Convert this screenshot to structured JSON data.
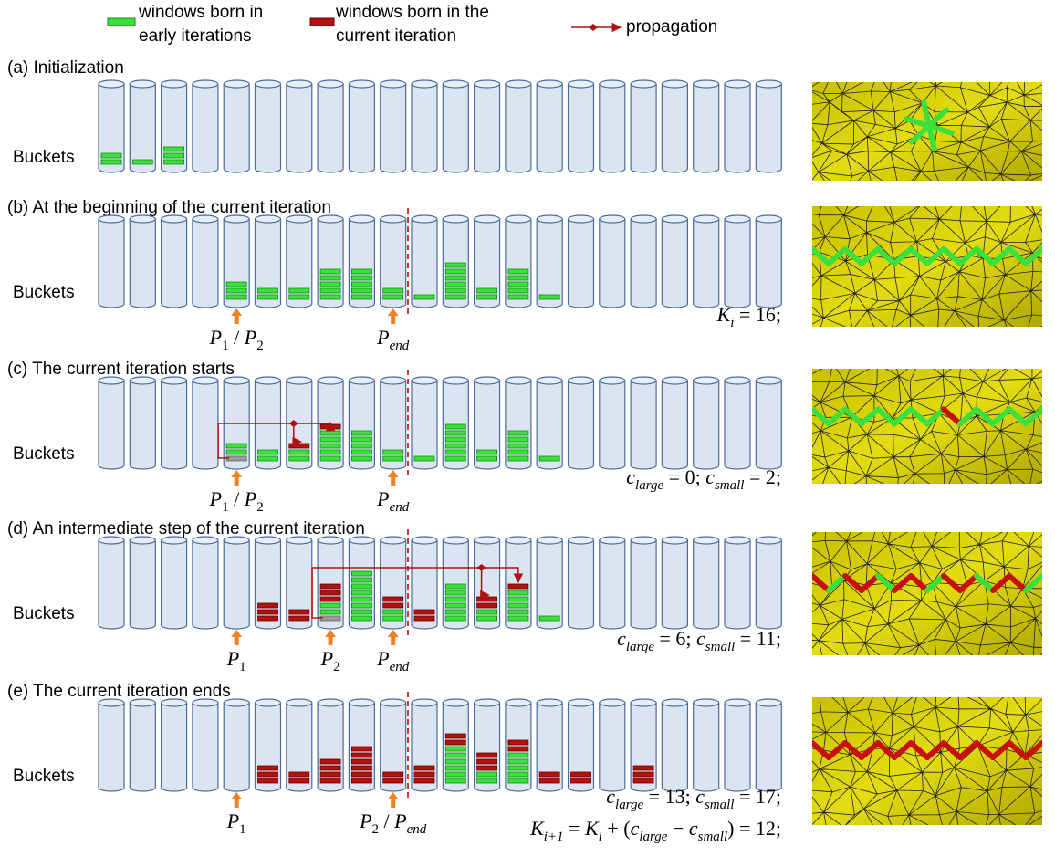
{
  "legend": [
    {
      "lines": [
        "windows born in",
        "early iterations"
      ]
    },
    {
      "lines": [
        "windows born in the",
        "current iteration"
      ]
    },
    {
      "lines": [
        "propagation"
      ]
    }
  ],
  "panels": [
    {
      "title": "(a) Initialization",
      "row_label": "Buckets"
    },
    {
      "title": "(b) At the beginning of the current iteration",
      "row_label": "Buckets",
      "pointers": [
        [
          {
            "text": "P",
            "italic": true
          },
          {
            "text": "1",
            "sub": true
          },
          {
            "text": " / "
          },
          {
            "text": "P",
            "italic": true
          },
          {
            "text": "2",
            "sub": true
          }
        ],
        [
          {
            "text": "P",
            "italic": true
          },
          {
            "text": "end",
            "sub": true,
            "italic": true
          }
        ]
      ],
      "equations": [
        [
          {
            "text": "K",
            "italic": true
          },
          {
            "text": "i",
            "sub": true,
            "italic": true
          },
          {
            "text": " = 16;"
          }
        ]
      ]
    },
    {
      "title": "(c) The current iteration starts",
      "row_label": "Buckets",
      "pointers": [
        [
          {
            "text": "P",
            "italic": true
          },
          {
            "text": "1",
            "sub": true
          },
          {
            "text": " / "
          },
          {
            "text": "P",
            "italic": true
          },
          {
            "text": "2",
            "sub": true
          }
        ],
        [
          {
            "text": "P",
            "italic": true
          },
          {
            "text": "end",
            "sub": true,
            "italic": true
          }
        ]
      ],
      "equations": [
        [
          {
            "text": "c",
            "italic": true
          },
          {
            "text": "large",
            "sub": true,
            "italic": true
          },
          {
            "text": " = 0; "
          },
          {
            "text": "c",
            "italic": true
          },
          {
            "text": "small",
            "sub": true,
            "italic": true
          },
          {
            "text": " = 2;"
          }
        ]
      ]
    },
    {
      "title": "(d) An intermediate step of the current iteration",
      "row_label": "Buckets",
      "pointers": [
        [
          {
            "text": "P",
            "italic": true
          },
          {
            "text": "1",
            "sub": true
          }
        ],
        [
          {
            "text": "P",
            "italic": true
          },
          {
            "text": "2",
            "sub": true
          }
        ],
        [
          {
            "text": "P",
            "italic": true
          },
          {
            "text": "end",
            "sub": true,
            "italic": true
          }
        ]
      ],
      "equations": [
        [
          {
            "text": "c",
            "italic": true
          },
          {
            "text": "large",
            "sub": true,
            "italic": true
          },
          {
            "text": " = 6; "
          },
          {
            "text": "c",
            "italic": true
          },
          {
            "text": "small",
            "sub": true,
            "italic": true
          },
          {
            "text": " = 11;"
          }
        ]
      ]
    },
    {
      "title": "(e) The current iteration ends",
      "row_label": "Buckets",
      "pointers": [
        [
          {
            "text": "P",
            "italic": true
          },
          {
            "text": "1",
            "sub": true
          }
        ],
        [
          {
            "text": "P",
            "italic": true
          },
          {
            "text": "2",
            "sub": true
          },
          {
            "text": " / "
          },
          {
            "text": "P",
            "italic": true
          },
          {
            "text": "end",
            "sub": true,
            "italic": true
          }
        ]
      ],
      "equations": [
        [
          {
            "text": "c",
            "italic": true
          },
          {
            "text": "large",
            "sub": true,
            "italic": true
          },
          {
            "text": " = 13; "
          },
          {
            "text": "c",
            "italic": true
          },
          {
            "text": "small",
            "sub": true,
            "italic": true
          },
          {
            "text": " = 17;"
          }
        ],
        [
          {
            "text": "K",
            "italic": true
          },
          {
            "text": "i+1",
            "sub": true,
            "italic": true
          },
          {
            "text": " = "
          },
          {
            "text": "K",
            "italic": true
          },
          {
            "text": "i",
            "sub": true,
            "italic": true
          },
          {
            "text": " + ("
          },
          {
            "text": "c",
            "italic": true
          },
          {
            "text": "large",
            "sub": true,
            "italic": true
          },
          {
            "text": " − "
          },
          {
            "text": "c",
            "italic": true
          },
          {
            "text": "small",
            "sub": true,
            "italic": true
          },
          {
            "text": ") = 12;"
          }
        ]
      ]
    }
  ]
}
